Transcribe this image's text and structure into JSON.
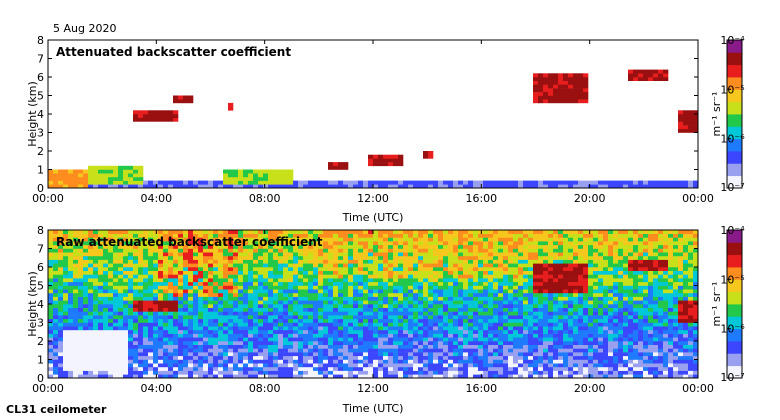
{
  "date": "5 Aug 2020",
  "footer": "CL31 ceilometer",
  "colors": {
    "ramp": [
      "#f4f4ff",
      "#9aa0f0",
      "#3c46ff",
      "#1e7bff",
      "#00c8d8",
      "#22c84a",
      "#c8e01a",
      "#f6c81e",
      "#ff8c1e",
      "#e81e1e",
      "#9a1010",
      "#8a1a8a"
    ]
  },
  "chart_data": [
    {
      "type": "heatmap",
      "title": "Attenuated backscatter coefficient",
      "xlabel": "Time (UTC)",
      "ylabel": "Height (km)",
      "xlim": [
        0,
        24
      ],
      "ylim": [
        0,
        8
      ],
      "x_ticks": [
        "00:00",
        "04:00",
        "08:00",
        "12:00",
        "16:00",
        "20:00",
        "00:00"
      ],
      "y_ticks": [
        "0",
        "1",
        "2",
        "3",
        "4",
        "5",
        "6",
        "7",
        "8"
      ],
      "colorbar": {
        "label": "m⁻¹ sr⁻¹",
        "scale": "log",
        "range": [
          1e-07,
          0.0001
        ],
        "ticks": [
          "10⁻⁷",
          "10⁻⁶",
          "10⁻⁵",
          "10⁻⁴"
        ]
      },
      "features": [
        {
          "kind": "boundary_layer",
          "t_start": 0,
          "t_end": 24,
          "top_km": 0.3,
          "level": 2
        },
        {
          "kind": "low_cloud",
          "t_start": 0,
          "t_end": 1.5,
          "base_km": 0.1,
          "top_km": 1.0,
          "level": 8
        },
        {
          "kind": "aerosol_layer",
          "t_start": 1.5,
          "t_end": 3.5,
          "base_km": 0.3,
          "top_km": 1.2,
          "level": 6
        },
        {
          "kind": "cloud",
          "t_start": 3.2,
          "t_end": 4.8,
          "base_km": 3.6,
          "top_km": 4.2,
          "level": 10
        },
        {
          "kind": "cloud",
          "t_start": 4.7,
          "t_end": 5.4,
          "base_km": 4.6,
          "top_km": 5.0,
          "level": 10
        },
        {
          "kind": "cloud",
          "t_start": 6.6,
          "t_end": 6.8,
          "base_km": 4.3,
          "top_km": 4.6,
          "level": 10
        },
        {
          "kind": "aerosol_layer",
          "t_start": 6.5,
          "t_end": 9.0,
          "base_km": 0.3,
          "top_km": 1.0,
          "level": 6
        },
        {
          "kind": "cloud",
          "t_start": 10.3,
          "t_end": 11.0,
          "base_km": 1.1,
          "top_km": 1.4,
          "level": 10
        },
        {
          "kind": "cloud",
          "t_start": 11.8,
          "t_end": 13.2,
          "base_km": 1.2,
          "top_km": 1.7,
          "level": 10
        },
        {
          "kind": "cloud",
          "t_start": 13.9,
          "t_end": 14.3,
          "base_km": 1.6,
          "top_km": 2.0,
          "level": 10
        },
        {
          "kind": "cloud",
          "t_start": 18.0,
          "t_end": 20.0,
          "base_km": 4.6,
          "top_km": 6.2,
          "level": 10
        },
        {
          "kind": "cloud",
          "t_start": 21.5,
          "t_end": 22.8,
          "base_km": 5.9,
          "top_km": 6.3,
          "level": 10
        },
        {
          "kind": "cloud",
          "t_start": 23.2,
          "t_end": 24.0,
          "base_km": 3.0,
          "top_km": 4.2,
          "level": 10
        }
      ]
    },
    {
      "type": "heatmap",
      "title": "Raw attenuated backscatter coefficient",
      "xlabel": "Time (UTC)",
      "ylabel": "Height (km)",
      "xlim": [
        0,
        24
      ],
      "ylim": [
        0,
        8
      ],
      "x_ticks": [
        "00:00",
        "04:00",
        "08:00",
        "12:00",
        "16:00",
        "20:00",
        "00:00"
      ],
      "y_ticks": [
        "0",
        "1",
        "2",
        "3",
        "4",
        "5",
        "6",
        "7",
        "8"
      ],
      "colorbar": {
        "label": "m⁻¹ sr⁻¹",
        "scale": "log",
        "range": [
          1e-07,
          0.0001
        ],
        "ticks": [
          "10⁻⁷",
          "10⁻⁶",
          "10⁻⁵",
          "10⁻⁴"
        ]
      },
      "features": [
        {
          "kind": "noise_field",
          "t_start": 0,
          "t_end": 24,
          "base_km": 0,
          "top_km": 8,
          "level": 5
        },
        {
          "kind": "noise_hotspot",
          "t_start": 4.0,
          "t_end": 7.0,
          "base_km": 4.5,
          "top_km": 8,
          "level": 9
        },
        {
          "kind": "noise_hotspot",
          "t_start": 10.0,
          "t_end": 18.0,
          "base_km": 5.5,
          "top_km": 8,
          "level": 8
        },
        {
          "kind": "clear_gap",
          "t_start": 0.5,
          "t_end": 3.0,
          "base_km": 0.5,
          "top_km": 2.5,
          "level": 0
        },
        {
          "kind": "cloud",
          "t_start": 3.2,
          "t_end": 4.8,
          "base_km": 3.6,
          "top_km": 4.2,
          "level": 10
        },
        {
          "kind": "cloud",
          "t_start": 18.0,
          "t_end": 20.0,
          "base_km": 4.6,
          "top_km": 6.2,
          "level": 10
        },
        {
          "kind": "cloud",
          "t_start": 21.5,
          "t_end": 22.8,
          "base_km": 5.9,
          "top_km": 6.3,
          "level": 10
        },
        {
          "kind": "cloud",
          "t_start": 23.2,
          "t_end": 24.0,
          "base_km": 3.0,
          "top_km": 4.2,
          "level": 10
        }
      ]
    }
  ]
}
